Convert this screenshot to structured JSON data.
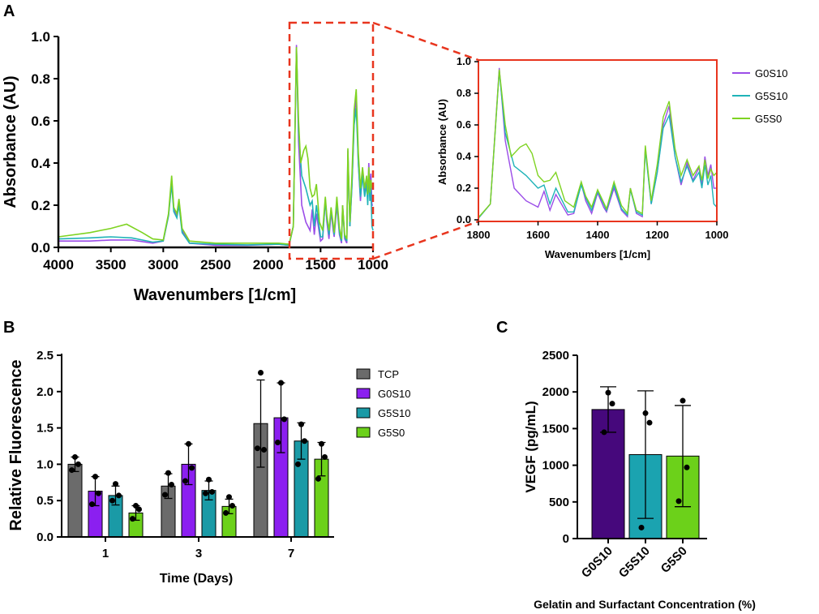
{
  "panel_labels": {
    "a": "A",
    "b": "B",
    "c": "C"
  },
  "colors": {
    "G0S10_line": "#9b4de8",
    "G5S10_line": "#1fb3b8",
    "G5S0_line": "#7ed321",
    "zoom_box": "#e8351e",
    "TCP_bar": "#6b6b6b",
    "G0S10_bar": "#8b1ff0",
    "G5S10_bar": "#1a9aa6",
    "G5S0_bar": "#6cd11a",
    "C_G0S10_bar": "#46087c",
    "C_G5S10_bar": "#1ba3b0",
    "C_G5S0_bar": "#6cd11a"
  },
  "chart_data": [
    {
      "id": "A-main",
      "type": "line",
      "title": "",
      "xlabel": "Wavenumbers [1/cm]",
      "ylabel": "Absorbance (AU)",
      "xlim": [
        4000,
        1000
      ],
      "ylim": [
        0,
        1.0
      ],
      "xticks": [
        "4000",
        "3500",
        "3000",
        "2500",
        "2000",
        "1500",
        "1000"
      ],
      "yticks": [
        "0.0",
        "0.2",
        "0.4",
        "0.6",
        "0.8",
        "1.0"
      ],
      "series": [
        {
          "name": "G0S10",
          "points": [
            [
              4000,
              0.03
            ],
            [
              3700,
              0.03
            ],
            [
              3500,
              0.035
            ],
            [
              3300,
              0.035
            ],
            [
              3100,
              0.02
            ],
            [
              3000,
              0.03
            ],
            [
              2950,
              0.15
            ],
            [
              2920,
              0.32
            ],
            [
              2900,
              0.18
            ],
            [
              2870,
              0.15
            ],
            [
              2850,
              0.22
            ],
            [
              2820,
              0.08
            ],
            [
              2750,
              0.02
            ],
            [
              2500,
              0.01
            ],
            [
              2200,
              0.01
            ],
            [
              1900,
              0.015
            ],
            [
              1800,
              0.01
            ],
            [
              1760,
              0.1
            ],
            [
              1730,
              0.96
            ],
            [
              1710,
              0.5
            ],
            [
              1680,
              0.2
            ],
            [
              1640,
              0.12
            ],
            [
              1600,
              0.08
            ],
            [
              1580,
              0.18
            ],
            [
              1560,
              0.06
            ],
            [
              1540,
              0.16
            ],
            [
              1500,
              0.03
            ],
            [
              1480,
              0.04
            ],
            [
              1455,
              0.23
            ],
            [
              1440,
              0.12
            ],
            [
              1420,
              0.04
            ],
            [
              1400,
              0.17
            ],
            [
              1380,
              0.08
            ],
            [
              1370,
              0.05
            ],
            [
              1345,
              0.2
            ],
            [
              1320,
              0.06
            ],
            [
              1300,
              0.02
            ],
            [
              1290,
              0.2
            ],
            [
              1270,
              0.04
            ],
            [
              1250,
              0.02
            ],
            [
              1240,
              0.46
            ],
            [
              1220,
              0.1
            ],
            [
              1200,
              0.3
            ],
            [
              1180,
              0.6
            ],
            [
              1160,
              0.72
            ],
            [
              1140,
              0.4
            ],
            [
              1120,
              0.22
            ],
            [
              1100,
              0.36
            ],
            [
              1080,
              0.25
            ],
            [
              1060,
              0.33
            ],
            [
              1050,
              0.22
            ],
            [
              1040,
              0.4
            ],
            [
              1030,
              0.28
            ],
            [
              1020,
              0.35
            ],
            [
              1010,
              0.2
            ],
            [
              1000,
              0.2
            ]
          ]
        },
        {
          "name": "G5S10",
          "points": [
            [
              4000,
              0.04
            ],
            [
              3700,
              0.045
            ],
            [
              3500,
              0.05
            ],
            [
              3300,
              0.045
            ],
            [
              3100,
              0.025
            ],
            [
              3000,
              0.03
            ],
            [
              2950,
              0.15
            ],
            [
              2920,
              0.3
            ],
            [
              2900,
              0.17
            ],
            [
              2870,
              0.14
            ],
            [
              2850,
              0.2
            ],
            [
              2820,
              0.07
            ],
            [
              2750,
              0.02
            ],
            [
              2500,
              0.015
            ],
            [
              2200,
              0.012
            ],
            [
              1900,
              0.015
            ],
            [
              1800,
              0.01
            ],
            [
              1760,
              0.1
            ],
            [
              1730,
              0.94
            ],
            [
              1710,
              0.55
            ],
            [
              1680,
              0.34
            ],
            [
              1640,
              0.28
            ],
            [
              1600,
              0.2
            ],
            [
              1580,
              0.22
            ],
            [
              1560,
              0.1
            ],
            [
              1540,
              0.2
            ],
            [
              1500,
              0.05
            ],
            [
              1480,
              0.05
            ],
            [
              1455,
              0.22
            ],
            [
              1440,
              0.14
            ],
            [
              1420,
              0.06
            ],
            [
              1400,
              0.18
            ],
            [
              1380,
              0.1
            ],
            [
              1370,
              0.06
            ],
            [
              1345,
              0.22
            ],
            [
              1320,
              0.07
            ],
            [
              1300,
              0.03
            ],
            [
              1290,
              0.19
            ],
            [
              1270,
              0.05
            ],
            [
              1250,
              0.03
            ],
            [
              1240,
              0.44
            ],
            [
              1220,
              0.1
            ],
            [
              1200,
              0.3
            ],
            [
              1180,
              0.58
            ],
            [
              1160,
              0.66
            ],
            [
              1140,
              0.4
            ],
            [
              1120,
              0.24
            ],
            [
              1100,
              0.34
            ],
            [
              1080,
              0.24
            ],
            [
              1060,
              0.3
            ],
            [
              1050,
              0.2
            ],
            [
              1040,
              0.35
            ],
            [
              1030,
              0.22
            ],
            [
              1020,
              0.28
            ],
            [
              1010,
              0.1
            ],
            [
              1000,
              0.08
            ]
          ]
        },
        {
          "name": "G5S0",
          "points": [
            [
              4000,
              0.05
            ],
            [
              3700,
              0.07
            ],
            [
              3500,
              0.09
            ],
            [
              3350,
              0.11
            ],
            [
              3200,
              0.07
            ],
            [
              3100,
              0.04
            ],
            [
              3000,
              0.035
            ],
            [
              2950,
              0.16
            ],
            [
              2920,
              0.34
            ],
            [
              2900,
              0.19
            ],
            [
              2870,
              0.16
            ],
            [
              2850,
              0.23
            ],
            [
              2820,
              0.09
            ],
            [
              2750,
              0.03
            ],
            [
              2500,
              0.02
            ],
            [
              2200,
              0.02
            ],
            [
              1900,
              0.02
            ],
            [
              1800,
              0.015
            ],
            [
              1760,
              0.1
            ],
            [
              1730,
              0.95
            ],
            [
              1710,
              0.6
            ],
            [
              1690,
              0.4
            ],
            [
              1660,
              0.46
            ],
            [
              1640,
              0.48
            ],
            [
              1620,
              0.42
            ],
            [
              1600,
              0.28
            ],
            [
              1580,
              0.24
            ],
            [
              1560,
              0.25
            ],
            [
              1540,
              0.3
            ],
            [
              1510,
              0.12
            ],
            [
              1480,
              0.08
            ],
            [
              1455,
              0.24
            ],
            [
              1440,
              0.15
            ],
            [
              1420,
              0.08
            ],
            [
              1400,
              0.19
            ],
            [
              1380,
              0.11
            ],
            [
              1370,
              0.07
            ],
            [
              1345,
              0.24
            ],
            [
              1320,
              0.09
            ],
            [
              1300,
              0.04
            ],
            [
              1290,
              0.2
            ],
            [
              1270,
              0.06
            ],
            [
              1250,
              0.04
            ],
            [
              1240,
              0.47
            ],
            [
              1220,
              0.12
            ],
            [
              1200,
              0.35
            ],
            [
              1180,
              0.65
            ],
            [
              1160,
              0.75
            ],
            [
              1140,
              0.45
            ],
            [
              1120,
              0.28
            ],
            [
              1100,
              0.38
            ],
            [
              1080,
              0.28
            ],
            [
              1060,
              0.34
            ],
            [
              1050,
              0.25
            ],
            [
              1040,
              0.38
            ],
            [
              1030,
              0.26
            ],
            [
              1020,
              0.32
            ],
            [
              1010,
              0.28
            ],
            [
              1000,
              0.3
            ]
          ]
        }
      ]
    },
    {
      "id": "A-inset",
      "type": "line",
      "title": "",
      "xlabel": "Wavenumbers [1/cm]",
      "ylabel": "Absorbance (AU)",
      "xlim": [
        1800,
        1000
      ],
      "ylim": [
        0,
        1.0
      ],
      "xticks": [
        "1800",
        "1600",
        "1400",
        "1200",
        "1000"
      ],
      "yticks": [
        "0.0",
        "0.2",
        "0.4",
        "0.6",
        "0.8",
        "1.0"
      ],
      "legend": [
        "G0S10",
        "G5S10",
        "G5S0"
      ],
      "series_ref": "A-main"
    },
    {
      "id": "B",
      "type": "bar",
      "title": "",
      "xlabel": "Time (Days)",
      "ylabel": "Relative Fluorescence",
      "categories": [
        "1",
        "3",
        "7"
      ],
      "ylim": [
        0,
        2.5
      ],
      "yticks": [
        "0.0",
        "0.5",
        "1.0",
        "1.5",
        "2.0",
        "2.5"
      ],
      "legend": [
        "TCP",
        "G0S10",
        "G5S10",
        "G5S0"
      ],
      "series": [
        {
          "name": "TCP",
          "values": [
            1.0,
            0.7,
            1.56
          ],
          "errors": [
            0.1,
            0.17,
            0.6
          ],
          "points": [
            [
              0.92,
              1.0,
              1.1
            ],
            [
              0.58,
              0.72,
              0.88
            ],
            [
              1.22,
              1.2,
              2.26
            ]
          ]
        },
        {
          "name": "G0S10",
          "values": [
            0.63,
            1.0,
            1.64
          ],
          "errors": [
            0.2,
            0.28,
            0.48
          ],
          "points": [
            [
              0.45,
              0.6,
              0.83
            ],
            [
              0.77,
              0.95,
              1.28
            ],
            [
              1.3,
              1.62,
              2.12
            ]
          ]
        },
        {
          "name": "G5S10",
          "values": [
            0.57,
            0.64,
            1.32
          ],
          "errors": [
            0.13,
            0.13,
            0.25
          ],
          "points": [
            [
              0.5,
              0.57,
              0.73
            ],
            [
              0.6,
              0.62,
              0.79
            ],
            [
              1.0,
              1.32,
              1.55
            ]
          ]
        },
        {
          "name": "G5S0",
          "values": [
            0.33,
            0.42,
            1.07
          ],
          "errors": [
            0.1,
            0.1,
            0.23
          ],
          "points": [
            [
              0.25,
              0.38,
              0.43
            ],
            [
              0.33,
              0.43,
              0.55
            ],
            [
              0.8,
              1.1,
              1.28
            ]
          ]
        }
      ]
    },
    {
      "id": "C",
      "type": "bar",
      "title": "",
      "xlabel": "Gelatin and Surfactant Concentration (%)",
      "ylabel": "VEGF (pg/mL)",
      "categories": [
        "G0S10",
        "G5S10",
        "G5S0"
      ],
      "ylim": [
        0,
        2500
      ],
      "yticks": [
        "0",
        "500",
        "1000",
        "1500",
        "2000",
        "2500"
      ],
      "values": [
        1760,
        1145,
        1125
      ],
      "errors": [
        310,
        870,
        690
      ],
      "points": [
        [
          1450,
          1840,
          1990
        ],
        [
          150,
          1580,
          1710
        ],
        [
          510,
          970,
          1880
        ]
      ]
    }
  ]
}
